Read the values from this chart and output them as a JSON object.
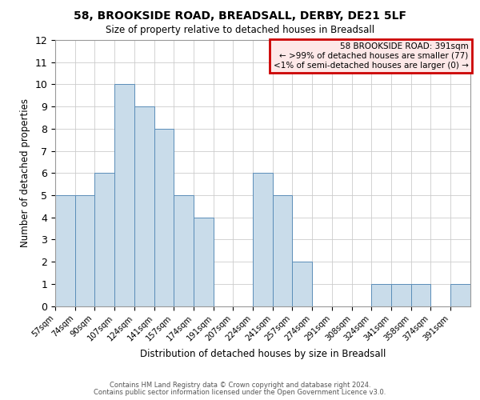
{
  "title": "58, BROOKSIDE ROAD, BREADSALL, DERBY, DE21 5LF",
  "subtitle": "Size of property relative to detached houses in Breadsall",
  "xlabel": "Distribution of detached houses by size in Breadsall",
  "ylabel": "Number of detached properties",
  "bin_edges": [
    57,
    74,
    90,
    107,
    124,
    141,
    157,
    174,
    191,
    207,
    224,
    241,
    257,
    274,
    291,
    308,
    324,
    341,
    358,
    374,
    391
  ],
  "bin_labels": [
    "57sqm",
    "74sqm",
    "90sqm",
    "107sqm",
    "124sqm",
    "141sqm",
    "157sqm",
    "174sqm",
    "191sqm",
    "207sqm",
    "224sqm",
    "241sqm",
    "257sqm",
    "274sqm",
    "291sqm",
    "308sqm",
    "324sqm",
    "341sqm",
    "358sqm",
    "374sqm",
    "391sqm"
  ],
  "heights": [
    5,
    5,
    6,
    10,
    9,
    8,
    5,
    4,
    0,
    0,
    6,
    5,
    2,
    0,
    0,
    0,
    1,
    1,
    1,
    0,
    1
  ],
  "bar_color": "#c9dcea",
  "bar_edgecolor": "#5b8db8",
  "ylim": [
    0,
    12
  ],
  "yticks": [
    0,
    1,
    2,
    3,
    4,
    5,
    6,
    7,
    8,
    9,
    10,
    11,
    12
  ],
  "legend_title": "58 BROOKSIDE ROAD: 391sqm",
  "legend_line1": "← >99% of detached houses are smaller (77)",
  "legend_line2": "<1% of semi-detached houses are larger (0) →",
  "legend_box_facecolor": "#fde8e8",
  "legend_box_edgecolor": "#cc0000",
  "footer_line1": "Contains HM Land Registry data © Crown copyright and database right 2024.",
  "footer_line2": "Contains public sector information licensed under the Open Government Licence v3.0.",
  "background_color": "#ffffff",
  "grid_color": "#cccccc"
}
